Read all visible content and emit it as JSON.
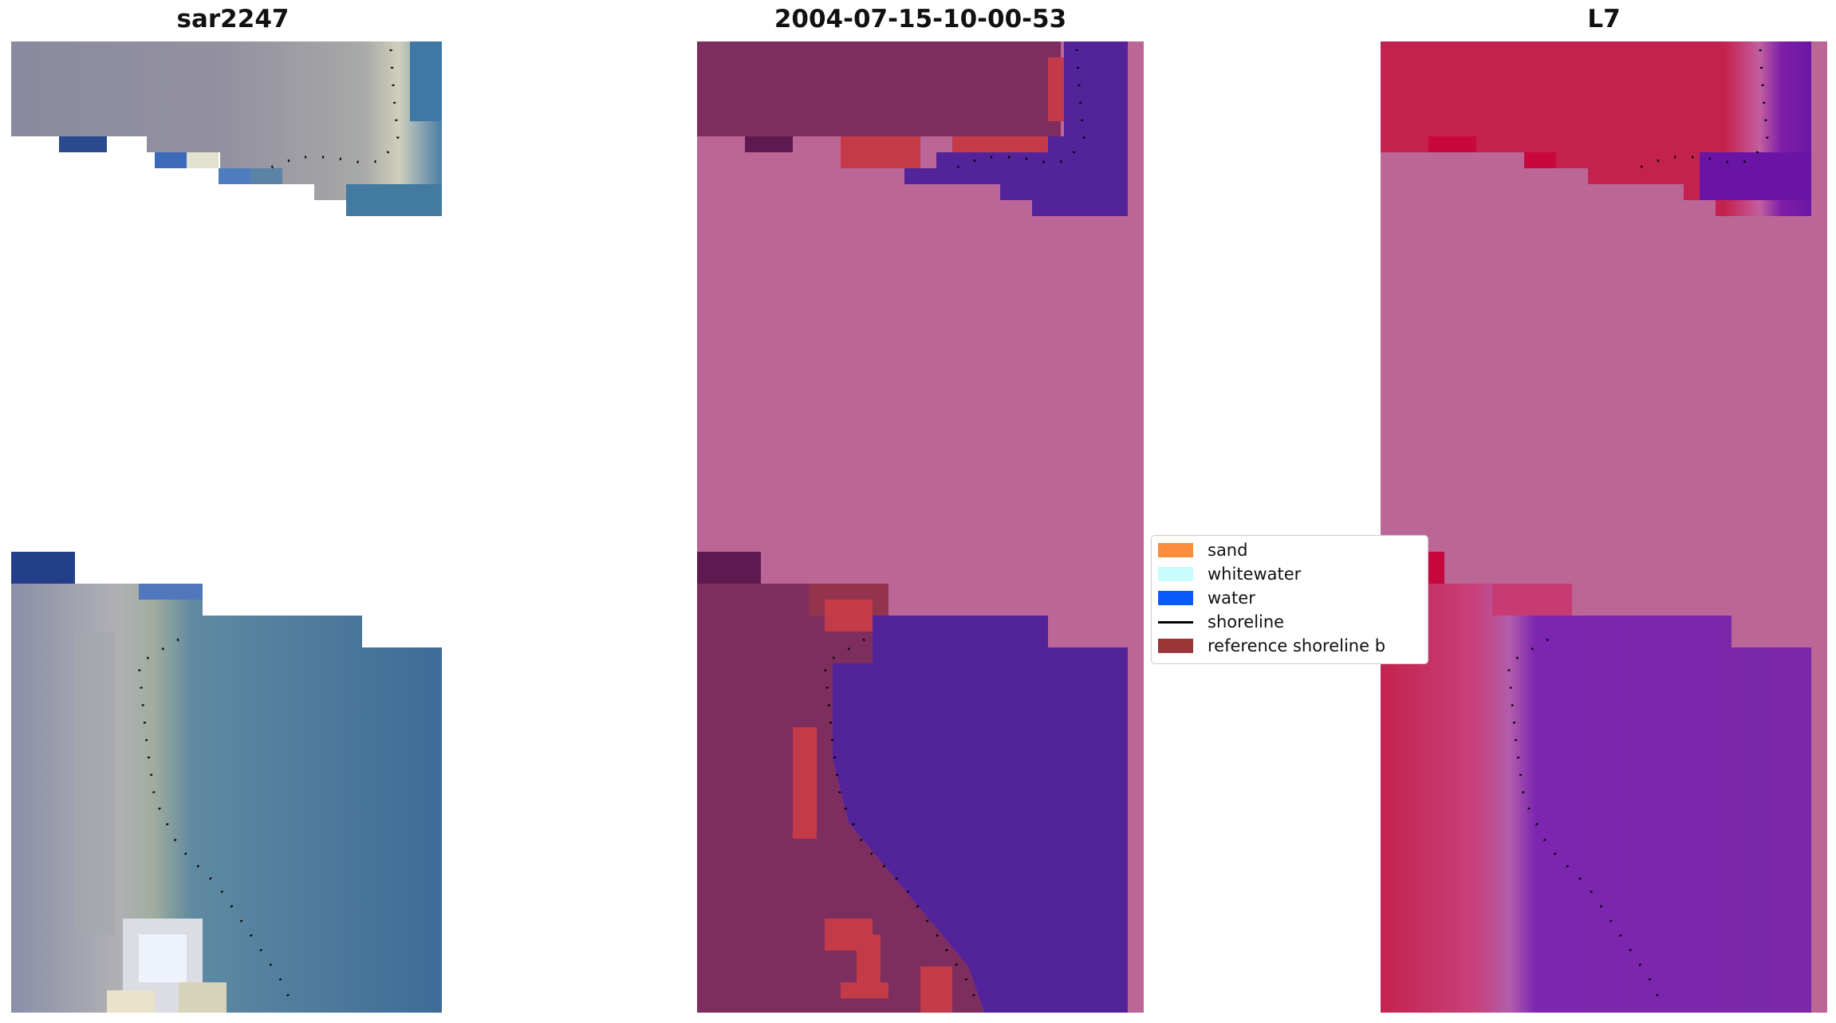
{
  "panels": {
    "left_title": "sar2247",
    "middle_title": "2004-07-15-10-00-53",
    "right_title": "L7"
  },
  "legend": {
    "items": [
      {
        "label": "sand",
        "color": "#fb8c3c",
        "kind": "swatch"
      },
      {
        "label": "whitewater",
        "color": "#c8fcfc",
        "kind": "swatch"
      },
      {
        "label": "water",
        "color": "#0a5cfa",
        "kind": "swatch"
      },
      {
        "label": "shoreline",
        "color": "#000000",
        "kind": "line"
      },
      {
        "label": "reference shoreline b",
        "color": "#9a3538",
        "kind": "swatch"
      }
    ]
  },
  "colors": {
    "background_magenta": "#bb6697",
    "water_purple": "#53239a",
    "land_mauve": "#7e2e5e",
    "sand_red": "#c33a49",
    "l7_red": "#c4224e",
    "l7_violet": "#6b16a6",
    "rgb_gray": "#8e8da1",
    "rgb_water": "#3f6a97"
  }
}
